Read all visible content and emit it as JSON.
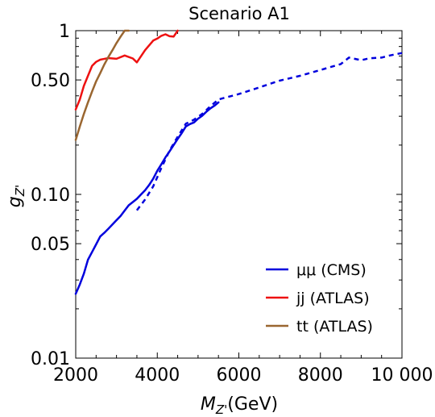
{
  "chart_data": {
    "type": "line",
    "title": "Scenario A1",
    "xlabel_main": "M",
    "xlabel_sub": "Z'",
    "xlabel_unit": "(GeV)",
    "ylabel_main": "g",
    "ylabel_sub": "Z'",
    "xlim": [
      2000,
      10000
    ],
    "ylim": [
      0.01,
      1
    ],
    "yscale": "log",
    "grid": false,
    "legend_position": "bottom-right",
    "x_ticks": [
      {
        "value": 2000,
        "label": "2000"
      },
      {
        "value": 4000,
        "label": "4000"
      },
      {
        "value": 6000,
        "label": "6000"
      },
      {
        "value": 8000,
        "label": "8000"
      },
      {
        "value": 10000,
        "label": "10 000"
      }
    ],
    "y_ticks": [
      {
        "value": 0.01,
        "label": "0.01"
      },
      {
        "value": 0.05,
        "label": "0.05"
      },
      {
        "value": 0.1,
        "label": "0.10"
      },
      {
        "value": 0.5,
        "label": "0.50"
      },
      {
        "value": 1,
        "label": "1"
      }
    ],
    "series": [
      {
        "name": "μμ (CMS)",
        "color": "#0000dd",
        "style": "solid",
        "x": [
          2000,
          2100,
          2200,
          2300,
          2400,
          2500,
          2600,
          2700,
          2800,
          2900,
          3000,
          3100,
          3200,
          3300,
          3400,
          3500,
          3600,
          3700,
          3800,
          3900,
          4000,
          4100,
          4200,
          4300,
          4400,
          4500,
          4600,
          4700,
          4800,
          4900,
          5000,
          5100,
          5200,
          5300,
          5400,
          5500
        ],
        "y": [
          0.0247,
          0.0282,
          0.0328,
          0.0399,
          0.0445,
          0.0495,
          0.0553,
          0.0582,
          0.0617,
          0.0655,
          0.0696,
          0.0739,
          0.0797,
          0.0858,
          0.0898,
          0.094,
          0.0999,
          0.106,
          0.114,
          0.1247,
          0.1394,
          0.1527,
          0.1683,
          0.1829,
          0.2,
          0.2182,
          0.2367,
          0.26,
          0.269,
          0.275,
          0.29,
          0.302,
          0.319,
          0.335,
          0.348,
          0.365
        ]
      },
      {
        "name": "",
        "color": "#0000dd",
        "style": "dashed",
        "x": [
          3500,
          3700,
          3900,
          4100,
          4300,
          4500,
          4700,
          4900,
          5100,
          5300,
          5500,
          5700,
          6000,
          6500,
          7000,
          7500,
          8000,
          8500,
          8700,
          9000,
          9200,
          9500,
          9700,
          10000
        ],
        "y": [
          0.08,
          0.093,
          0.112,
          0.145,
          0.185,
          0.225,
          0.27,
          0.286,
          0.31,
          0.345,
          0.38,
          0.392,
          0.41,
          0.45,
          0.495,
          0.53,
          0.575,
          0.625,
          0.685,
          0.66,
          0.678,
          0.685,
          0.705,
          0.73
        ]
      },
      {
        "name": "jj (ATLAS)",
        "color": "#ee1111",
        "style": "solid",
        "x": [
          2000,
          2100,
          2200,
          2300,
          2400,
          2500,
          2600,
          2800,
          3000,
          3200,
          3400,
          3500,
          3700,
          3900,
          4000,
          4100,
          4200,
          4300,
          4400,
          4500
        ],
        "y": [
          0.33,
          0.38,
          0.46,
          0.53,
          0.61,
          0.645,
          0.665,
          0.68,
          0.673,
          0.705,
          0.676,
          0.64,
          0.76,
          0.87,
          0.895,
          0.93,
          0.95,
          0.925,
          0.92,
          1.0
        ]
      },
      {
        "name": "tt (ATLAS)",
        "color": "#9a6630",
        "style": "solid",
        "x": [
          2000,
          2100,
          2200,
          2300,
          2400,
          2500,
          2600,
          2700,
          2800,
          2900,
          3000,
          3100,
          3200,
          3300
        ],
        "y": [
          0.215,
          0.26,
          0.31,
          0.365,
          0.425,
          0.49,
          0.55,
          0.62,
          0.69,
          0.76,
          0.84,
          0.92,
          1.0,
          1.0
        ]
      }
    ]
  }
}
